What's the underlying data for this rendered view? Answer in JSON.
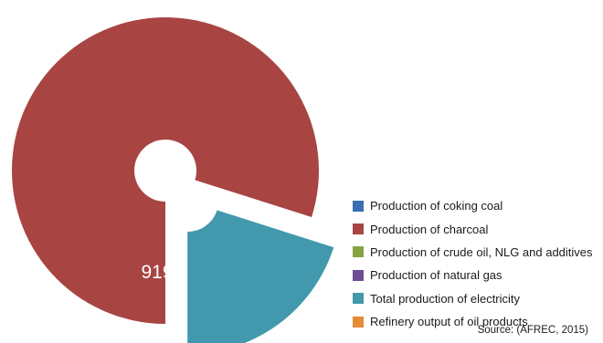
{
  "chart_data": {
    "type": "pie",
    "style": "exploded-donut",
    "legend_position": "right-bottom",
    "series": [
      {
        "name": "Production of coking coal",
        "value": null,
        "color": "#3a6eb0"
      },
      {
        "name": "Production of charcoal",
        "value": 919,
        "value_label": "919",
        "color": "#a84442"
      },
      {
        "name": "Production of crude oil, NLG and additives",
        "value": null,
        "color": "#86a444"
      },
      {
        "name": "Production of natural gas",
        "value": null,
        "color": "#6d4c94"
      },
      {
        "name": "Total production of electricity",
        "value": 231,
        "value_label": "",
        "color": "#4299ae"
      },
      {
        "name": "Refinery output of oil products",
        "value": null,
        "color": "#e48b36"
      }
    ]
  },
  "source": "Source: (AFREC, 2015)"
}
